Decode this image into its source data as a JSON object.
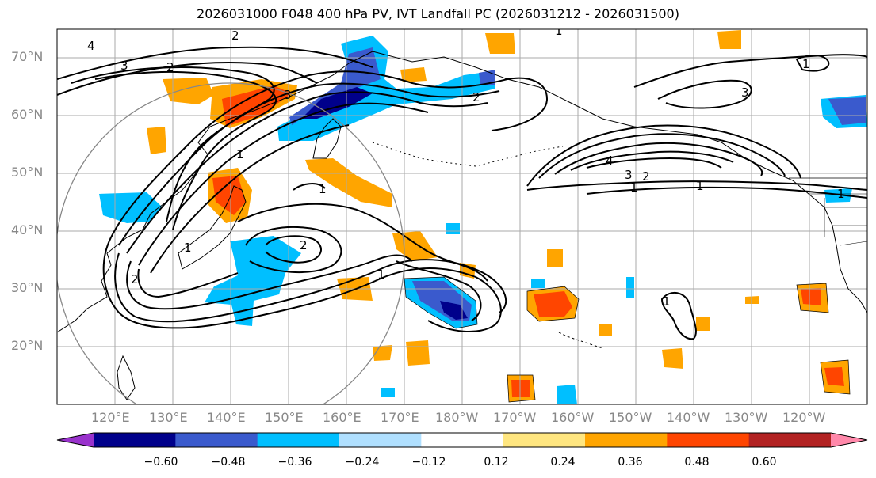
{
  "title": "2026031000 F048 400 hPa PV, IVT Landfall PC (2026031212 - 2026031500)",
  "lat_labels": [
    "70°N",
    "60°N",
    "50°N",
    "40°N",
    "30°N",
    "20°N"
  ],
  "lon_labels": [
    "120°E",
    "130°E",
    "140°E",
    "150°E",
    "160°E",
    "170°E",
    "180°W",
    "170°W",
    "160°W",
    "150°W",
    "140°W",
    "130°W",
    "120°W"
  ],
  "colorbar": {
    "colors": [
      "#9932cc",
      "#00008b",
      "#3a5acd",
      "#00bfff",
      "#b0e0ff",
      "#ffffff",
      "#ffe680",
      "#ffa500",
      "#ff4500",
      "#b22222",
      "#ff88aa"
    ],
    "tick_labels": [
      "−0.60",
      "−0.48",
      "−0.36",
      "−0.24",
      "−0.12",
      "0.12",
      "0.24",
      "0.36",
      "0.48",
      "0.60"
    ]
  },
  "contour_labels": [
    "4",
    "3",
    "2",
    "2",
    "3",
    "1",
    "1",
    "2",
    "1",
    "1",
    "2",
    "1",
    "4",
    "3",
    "2",
    "1",
    "1",
    "1",
    "3",
    "1",
    "2",
    "1"
  ],
  "legend_colors": {
    "pos_light": "#ffe680",
    "pos_mid": "#ffa500",
    "pos_strong": "#ff4500",
    "pos_max": "#b22222",
    "neg_light": "#b0e0ff",
    "neg_mid": "#00bfff",
    "neg_strong": "#3a5acd",
    "neg_max": "#00008b"
  }
}
